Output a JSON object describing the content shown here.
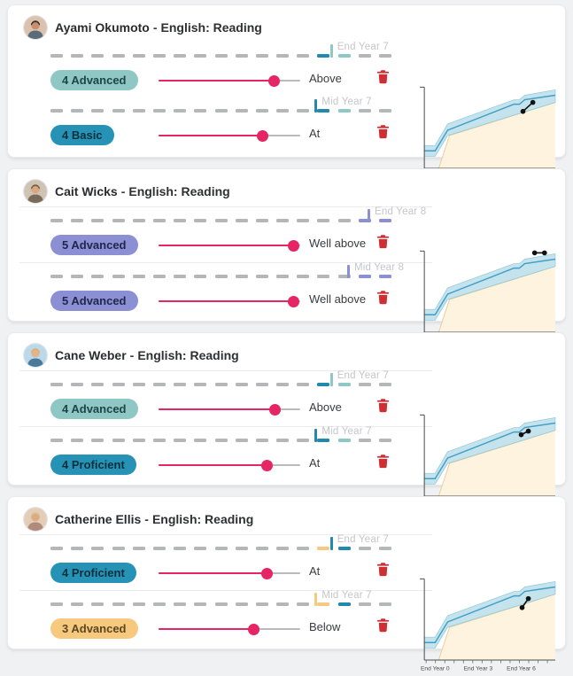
{
  "page": {
    "background": "#eff1f3",
    "separator": "-"
  },
  "colors": {
    "accent_pink": "#e62565",
    "delete_red": "#ce2f34",
    "dash_gray": "#b5b6b8",
    "level_blue": "#2189ae",
    "level_teal": "#8fc7c4",
    "level_purple": "#8b90d4",
    "level_yellow": "#f6c97e",
    "year_label_gray": "#c5c6ca"
  },
  "growth_chart": {
    "type": "area",
    "x_tick_labels": [
      "End Year 0",
      "End Year 3",
      "End Year 6"
    ],
    "x_tick_count": 14,
    "band_fill": "#c5e3ed",
    "band_edge": "#8fc8da",
    "midline_color": "#3f9fc4",
    "area_fill": "#fdf3de",
    "area_edge": "#e9cf9e",
    "point_color": "#111111"
  },
  "students": [
    {
      "name": "Ayami Okumoto",
      "subject": "English: Reading",
      "dividers": false,
      "avatar": {
        "bg": "#d9c3b0",
        "skin": "#c98e6e",
        "hair": "#3c2e2c",
        "shirt": "#5a6b7a"
      },
      "rows": [
        {
          "badge": {
            "text": "4 Advanced",
            "bg": "#8fc7c4",
            "fg": "#1d4547"
          },
          "slider_pct": 81,
          "status": "Above",
          "marker": {
            "label": "End Year 7",
            "tick_color": "#8fc7c4",
            "tick_pct": 82,
            "dash_overrides": {
              "13": "#2189ae",
              "14": "#8fc7c4"
            }
          }
        },
        {
          "badge": {
            "text": "4 Basic",
            "bg": "#2693b6",
            "fg": "#0c2f3d"
          },
          "slider_pct": 73,
          "status": "At",
          "marker": {
            "label": "Mid Year 7",
            "tick_color": "#2189ae",
            "tick_pct": 77.5,
            "dash_overrides": {
              "13": "#2189ae",
              "14": "#8fc7c4"
            }
          }
        }
      ],
      "chart": {
        "dots": [
          [
            122,
            33
          ],
          [
            133,
            23
          ]
        ]
      }
    },
    {
      "name": "Cait Wicks",
      "subject": "English: Reading",
      "dividers": true,
      "avatar": {
        "bg": "#cfc4b4",
        "skin": "#d8a585",
        "hair": "#7a5c42",
        "shirt": "#7a6a5a"
      },
      "rows": [
        {
          "badge": {
            "text": "5 Advanced",
            "bg": "#8b90d4",
            "fg": "#23264b"
          },
          "slider_pct": 95,
          "status": "Well above",
          "marker": {
            "label": "End Year 8",
            "tick_color": "#8b90d4",
            "tick_pct": 93,
            "dash_overrides": {
              "15": "#8b90d4",
              "16": "#8b90d4"
            }
          }
        },
        {
          "badge": {
            "text": "5 Advanced",
            "bg": "#8b90d4",
            "fg": "#23264b"
          },
          "slider_pct": 95,
          "status": "Well above",
          "marker": {
            "label": "Mid Year 8",
            "tick_color": "#8b90d4",
            "tick_pct": 87,
            "dash_overrides": {
              "15": "#8b90d4",
              "16": "#8b90d4"
            }
          }
        }
      ],
      "chart": {
        "dots": [
          [
            135,
            8
          ],
          [
            146,
            8
          ]
        ]
      }
    },
    {
      "name": "Cane Weber",
      "subject": "English: Reading",
      "dividers": true,
      "avatar": {
        "bg": "#bcd9ea",
        "skin": "#e3b48c",
        "hair": "#d9b36a",
        "shirt": "#4a7a9a"
      },
      "rows": [
        {
          "badge": {
            "text": "4 Advanced",
            "bg": "#8fc7c4",
            "fg": "#1d4547"
          },
          "slider_pct": 82,
          "status": "Above",
          "marker": {
            "label": "End Year 7",
            "tick_color": "#8fc7c4",
            "tick_pct": 82,
            "dash_overrides": {
              "13": "#2189ae",
              "14": "#8fc7c4"
            }
          }
        },
        {
          "badge": {
            "text": "4 Proficient",
            "bg": "#2693b6",
            "fg": "#0c2f3d"
          },
          "slider_pct": 76,
          "status": "At",
          "marker": {
            "label": "Mid Year 7",
            "tick_color": "#2189ae",
            "tick_pct": 77.5,
            "dash_overrides": {
              "13": "#2189ae",
              "14": "#8fc7c4"
            }
          }
        }
      ],
      "chart": {
        "dots": [
          [
            120,
            28
          ],
          [
            128,
            24
          ]
        ]
      }
    },
    {
      "name": "Catherine Ellis",
      "subject": "English: Reading",
      "dividers": true,
      "avatar": {
        "bg": "#e3cdb6",
        "skin": "#dcab84",
        "hair": "#d9bf8a",
        "shirt": "#b08a7a"
      },
      "rows": [
        {
          "badge": {
            "text": "4 Proficient",
            "bg": "#2693b6",
            "fg": "#0c2f3d"
          },
          "slider_pct": 76,
          "status": "At",
          "marker": {
            "label": "End Year 7",
            "tick_color": "#2189ae",
            "tick_pct": 82,
            "dash_overrides": {
              "13": "#f6c97e",
              "14": "#2189ae"
            }
          }
        },
        {
          "badge": {
            "text": "3 Advanced",
            "bg": "#f6c97e",
            "fg": "#5c4720"
          },
          "slider_pct": 67,
          "status": "Below",
          "marker": {
            "label": "Mid Year 7",
            "tick_color": "#f6c97e",
            "tick_pct": 77.5,
            "dash_overrides": {
              "13": "#f6c97e",
              "14": "#2189ae"
            }
          }
        }
      ],
      "chart": {
        "dots": [
          [
            121,
            38
          ],
          [
            128,
            28
          ]
        ]
      }
    }
  ]
}
